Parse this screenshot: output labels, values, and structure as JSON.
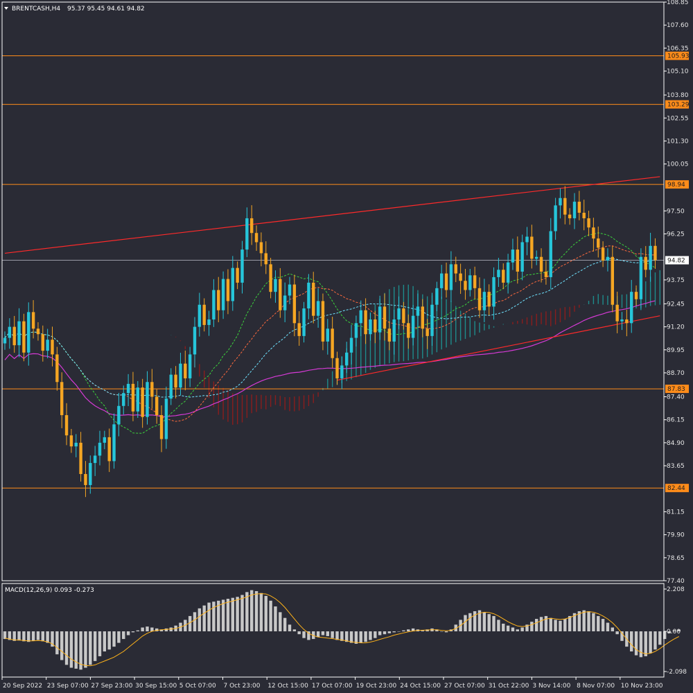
{
  "header": {
    "symbol": "BRENTCASH,H4",
    "ohlc": "95.37 95.45 94.61 94.82"
  },
  "colors": {
    "background": "#2a2b35",
    "bull": "#26c6da",
    "bear": "#f5a623",
    "level_line": "#ff8c1a",
    "channel_line": "#ff2a2a",
    "ma_pink": "#d63ad6",
    "ma_orange": "#ff6a3d",
    "ma_green": "#3cd33c",
    "ma_cyan": "#6fe3ff",
    "cloud_bull": "#1e8c8c",
    "cloud_bear": "#8a1d1d",
    "macd_hist": "#c8c8c8",
    "macd_signal": "#ffb31a"
  },
  "chart_data": [
    {
      "type": "candlestick",
      "ylim": [
        77.4,
        108.85
      ],
      "y_ticks": [
        "108.85",
        "107.60",
        "106.35",
        "105.10",
        "103.80",
        "102.55",
        "101.30",
        "100.05",
        "97.50",
        "96.25",
        "93.75",
        "92.45",
        "91.20",
        "89.95",
        "88.70",
        "87.40",
        "86.15",
        "84.90",
        "83.65",
        "81.15",
        "79.90",
        "78.65",
        "77.40"
      ],
      "x_labels": [
        "20 Sep 2022",
        "23 Sep 07:00",
        "27 Sep 23:00",
        "30 Sep 15:00",
        "5 Oct 07:00",
        "7 Oct 23:00",
        "12 Oct 15:00",
        "17 Oct 07:00",
        "19 Oct 23:00",
        "24 Oct 15:00",
        "27 Oct 07:00",
        "31 Oct 22:00",
        "3 Nov 14:00",
        "8 Nov 07:00",
        "10 Nov 23:00"
      ],
      "current_price": "94.82",
      "levels": [
        {
          "price": 105.93,
          "label": "105.93"
        },
        {
          "price": 103.29,
          "label": "103.29"
        },
        {
          "price": 98.94,
          "label": "98.94"
        },
        {
          "price": 87.83,
          "label": "87.83"
        },
        {
          "price": 82.44,
          "label": "82.44"
        }
      ],
      "channel": {
        "upper": [
          [
            0,
            95.2
          ],
          [
            138,
            99.36
          ]
        ],
        "lower": [
          [
            70,
            88.3
          ],
          [
            138,
            91.8
          ]
        ]
      },
      "closes": [
        90.6,
        91.2,
        90.2,
        91.5,
        89.8,
        92.0,
        91.1,
        90.8,
        89.9,
        90.5,
        89.7,
        88.2,
        86.4,
        85.3,
        84.7,
        84.9,
        83.2,
        82.6,
        83.8,
        84.2,
        84.9,
        85.2,
        83.9,
        85.9,
        86.9,
        87.6,
        88.1,
        86.6,
        87.9,
        86.3,
        88.2,
        87.4,
        86.4,
        85.1,
        87.3,
        88.6,
        87.9,
        89.2,
        88.4,
        89.7,
        91.2,
        92.4,
        91.3,
        91.6,
        93.2,
        92.1,
        93.8,
        92.6,
        94.4,
        93.6,
        95.4,
        97.1,
        96.3,
        95.8,
        95.2,
        94.6,
        93.1,
        93.8,
        92.1,
        92.9,
        93.5,
        91.4,
        90.7,
        92.2,
        93.6,
        91.8,
        92.6,
        90.4,
        91.1,
        89.5,
        88.4,
        89.1,
        89.8,
        90.6,
        91.4,
        92.1,
        90.8,
        91.6,
        90.9,
        92.3,
        91.1,
        90.4,
        91.6,
        92.2,
        91.4,
        90.6,
        91.8,
        92.3,
        91.1,
        90.7,
        92.4,
        93.3,
        94.1,
        93.2,
        94.6,
        94.1,
        93.7,
        93.2,
        94.0,
        93.3,
        92.1,
        93.1,
        92.3,
        93.9,
        94.3,
        93.6,
        94.7,
        95.4,
        94.2,
        95.8,
        96.1,
        94.9,
        95.0,
        94.2,
        93.9,
        96.4,
        97.8,
        98.2,
        97.3,
        97.1,
        98.0,
        97.4,
        97.1,
        96.6,
        96.0,
        95.5,
        94.8,
        95.0,
        92.4,
        91.5,
        91.6,
        91.4,
        93.1,
        92.7,
        95.0,
        94.3,
        95.6,
        94.82
      ],
      "macd": {
        "label": "MACD(12,26,9) 0.093 -0.273",
        "ylim": [
          -2.098,
          2.208
        ],
        "y_ticks": [
          "2.208",
          "0.00",
          "-2.098"
        ],
        "hist": [
          -0.4,
          -0.45,
          -0.5,
          -0.48,
          -0.52,
          -0.55,
          -0.5,
          -0.45,
          -0.52,
          -0.6,
          -0.8,
          -1.2,
          -1.5,
          -1.75,
          -1.9,
          -1.95,
          -2.0,
          -1.9,
          -1.75,
          -1.55,
          -1.3,
          -1.05,
          -0.95,
          -0.8,
          -0.6,
          -0.4,
          -0.2,
          -0.05,
          0.05,
          0.2,
          0.25,
          0.2,
          0.15,
          0.1,
          0.15,
          0.2,
          0.3,
          0.45,
          0.6,
          0.8,
          1.0,
          1.2,
          1.35,
          1.5,
          1.55,
          1.6,
          1.65,
          1.7,
          1.75,
          1.8,
          1.9,
          2.05,
          2.15,
          2.1,
          2.0,
          1.85,
          1.6,
          1.3,
          1.0,
          0.7,
          0.35,
          0.1,
          -0.15,
          -0.35,
          -0.45,
          -0.4,
          -0.3,
          -0.2,
          -0.25,
          -0.35,
          -0.45,
          -0.5,
          -0.55,
          -0.6,
          -0.65,
          -0.6,
          -0.55,
          -0.45,
          -0.35,
          -0.2,
          -0.15,
          -0.1,
          -0.05,
          0.0,
          0.05,
          0.1,
          0.15,
          0.1,
          0.05,
          0.1,
          0.15,
          0.1,
          0.0,
          -0.05,
          0.1,
          0.35,
          0.6,
          0.85,
          0.95,
          1.05,
          1.1,
          1.0,
          0.9,
          0.8,
          0.6,
          0.4,
          0.3,
          0.2,
          0.1,
          0.2,
          0.35,
          0.5,
          0.65,
          0.75,
          0.8,
          0.7,
          0.6,
          0.55,
          0.65,
          0.8,
          0.95,
          1.05,
          1.1,
          1.05,
          0.95,
          0.8,
          0.65,
          0.45,
          0.2,
          -0.15,
          -0.5,
          -0.8,
          -1.05,
          -1.25,
          -1.35,
          -1.3,
          -1.15,
          -0.95,
          -0.7,
          -0.4,
          -0.1,
          0.05,
          0.09
        ],
        "signal": [
          -0.35,
          -0.4,
          -0.45,
          -0.45,
          -0.48,
          -0.5,
          -0.5,
          -0.48,
          -0.5,
          -0.55,
          -0.65,
          -0.85,
          -1.05,
          -1.25,
          -1.45,
          -1.6,
          -1.72,
          -1.78,
          -1.8,
          -1.75,
          -1.65,
          -1.55,
          -1.45,
          -1.35,
          -1.2,
          -1.05,
          -0.85,
          -0.65,
          -0.45,
          -0.25,
          -0.1,
          0.0,
          0.05,
          0.08,
          0.1,
          0.12,
          0.15,
          0.22,
          0.32,
          0.45,
          0.6,
          0.78,
          0.95,
          1.1,
          1.25,
          1.35,
          1.45,
          1.52,
          1.58,
          1.65,
          1.72,
          1.8,
          1.9,
          1.95,
          1.97,
          1.95,
          1.85,
          1.7,
          1.5,
          1.25,
          0.95,
          0.65,
          0.35,
          0.1,
          -0.1,
          -0.22,
          -0.3,
          -0.32,
          -0.35,
          -0.38,
          -0.42,
          -0.45,
          -0.5,
          -0.55,
          -0.58,
          -0.6,
          -0.6,
          -0.56,
          -0.5,
          -0.42,
          -0.35,
          -0.28,
          -0.2,
          -0.14,
          -0.08,
          -0.03,
          0.02,
          0.05,
          0.06,
          0.07,
          0.08,
          0.08,
          0.05,
          0.03,
          0.05,
          0.15,
          0.3,
          0.5,
          0.7,
          0.85,
          0.95,
          1.0,
          0.98,
          0.92,
          0.8,
          0.65,
          0.5,
          0.38,
          0.28,
          0.25,
          0.28,
          0.35,
          0.45,
          0.55,
          0.65,
          0.68,
          0.65,
          0.62,
          0.65,
          0.72,
          0.82,
          0.92,
          1.0,
          1.03,
          1.0,
          0.92,
          0.8,
          0.65,
          0.45,
          0.2,
          -0.1,
          -0.4,
          -0.7,
          -0.95,
          -1.1,
          -1.18,
          -1.15,
          -1.05,
          -0.9,
          -0.72,
          -0.55,
          -0.4,
          -0.27
        ]
      }
    }
  ]
}
